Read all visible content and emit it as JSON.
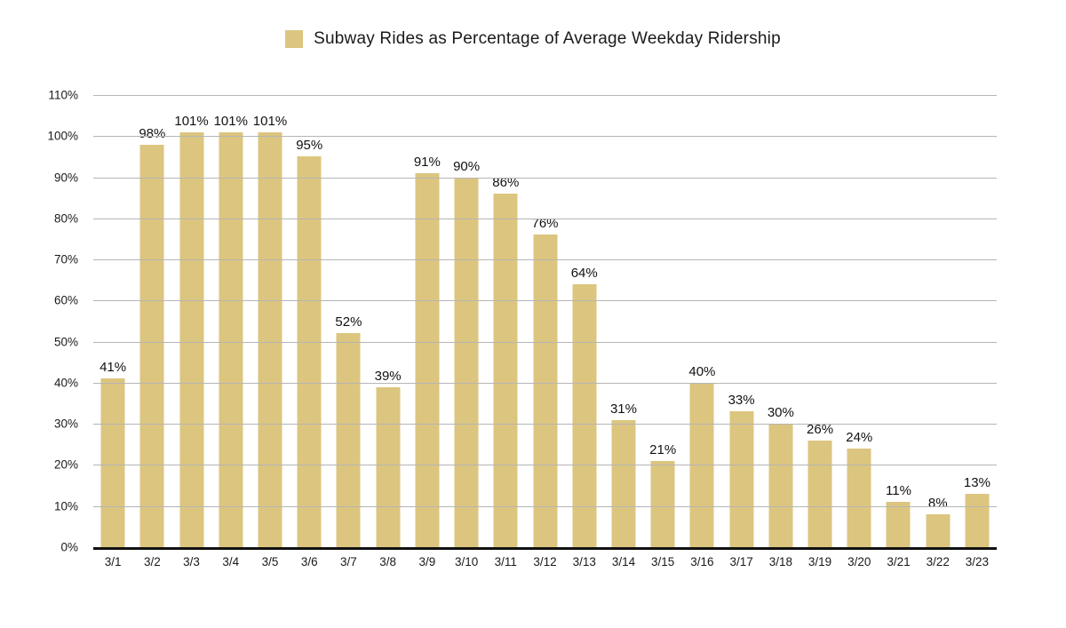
{
  "colors": {
    "bar": "#DCC57F",
    "gridline": "#B5B5B5",
    "axis": "#111111",
    "text": "#1A1A1A",
    "background": "#FFFFFF"
  },
  "legend": {
    "label": "Subway Rides as Percentage of Average Weekday Ridership"
  },
  "chart_data": {
    "type": "bar",
    "title": "Subway Rides as Percentage of Average Weekday Ridership",
    "categories": [
      "3/1",
      "3/2",
      "3/3",
      "3/4",
      "3/5",
      "3/6",
      "3/7",
      "3/8",
      "3/9",
      "3/10",
      "3/11",
      "3/12",
      "3/13",
      "3/14",
      "3/15",
      "3/16",
      "3/17",
      "3/18",
      "3/19",
      "3/20",
      "3/21",
      "3/22",
      "3/23"
    ],
    "values": [
      41,
      98,
      101,
      101,
      101,
      95,
      52,
      39,
      91,
      90,
      86,
      76,
      64,
      31,
      21,
      40,
      33,
      30,
      26,
      24,
      11,
      8,
      13
    ],
    "data_labels": [
      "41%",
      "98%",
      "101%",
      "101%",
      "101%",
      "95%",
      "52%",
      "39%",
      "91%",
      "90%",
      "86%",
      "76%",
      "64%",
      "31%",
      "21%",
      "40%",
      "33%",
      "30%",
      "26%",
      "24%",
      "11%",
      "8%",
      "13%"
    ],
    "xlabel": "",
    "ylabel": "",
    "ylim": [
      0,
      110
    ],
    "ytick_step": 10,
    "ytick_labels": [
      "0%",
      "10%",
      "20%",
      "30%",
      "40%",
      "50%",
      "60%",
      "70%",
      "80%",
      "90%",
      "100%",
      "110%"
    ],
    "grid": true,
    "legend_position": "top-center"
  }
}
